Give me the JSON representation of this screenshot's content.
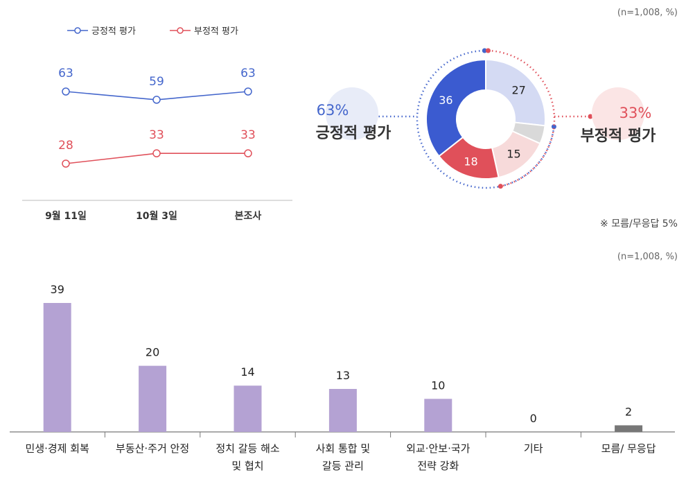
{
  "colors": {
    "positive": "#4466cc",
    "negative": "#e0505a",
    "positive_dark": "#3b5bd0",
    "positive_light": "#d4daf3",
    "negative_light": "#f7dada",
    "neutral": "#d9d9d9",
    "bar": "#b4a2d3",
    "bar_other": "#777777",
    "text_dark": "#333333",
    "muted": "#666666"
  },
  "sample_note_top": "(n=1,008, %)",
  "sample_note_bottom": "(n=1,008, %)",
  "dk_note": "※ 모름/무응답 5%",
  "chart_data": [
    {
      "type": "line",
      "categories": [
        "9월 11일",
        "10월 3일",
        "본조사"
      ],
      "series": [
        {
          "name": "긍정적 평가",
          "values": [
            63,
            59,
            63
          ]
        },
        {
          "name": "부정적 평가",
          "values": [
            28,
            33,
            33
          ]
        }
      ],
      "ylim": [
        0,
        100
      ],
      "grid": false,
      "legend": "top"
    },
    {
      "type": "pie",
      "labels": [
        "36",
        "27",
        "",
        "15",
        "18"
      ],
      "values": [
        36,
        27,
        5,
        15,
        18
      ],
      "summaries": [
        {
          "percent": "63%",
          "label": "긍정적 평가"
        },
        {
          "percent": "33%",
          "label": "부정적 평가"
        }
      ]
    },
    {
      "type": "bar",
      "categories": [
        [
          "민생·경제 회복"
        ],
        [
          "부동산·주거 안정"
        ],
        [
          "정치 갈등 해소",
          "및 협치"
        ],
        [
          "사회 통합 및",
          "갈등 관리"
        ],
        [
          "외교·안보·국가",
          "전략 강화"
        ],
        [
          "기타"
        ],
        [
          "모름/ 무응답"
        ]
      ],
      "values": [
        39,
        20,
        14,
        13,
        10,
        0,
        2
      ],
      "ylim": [
        0,
        40
      ],
      "grid": false
    }
  ]
}
